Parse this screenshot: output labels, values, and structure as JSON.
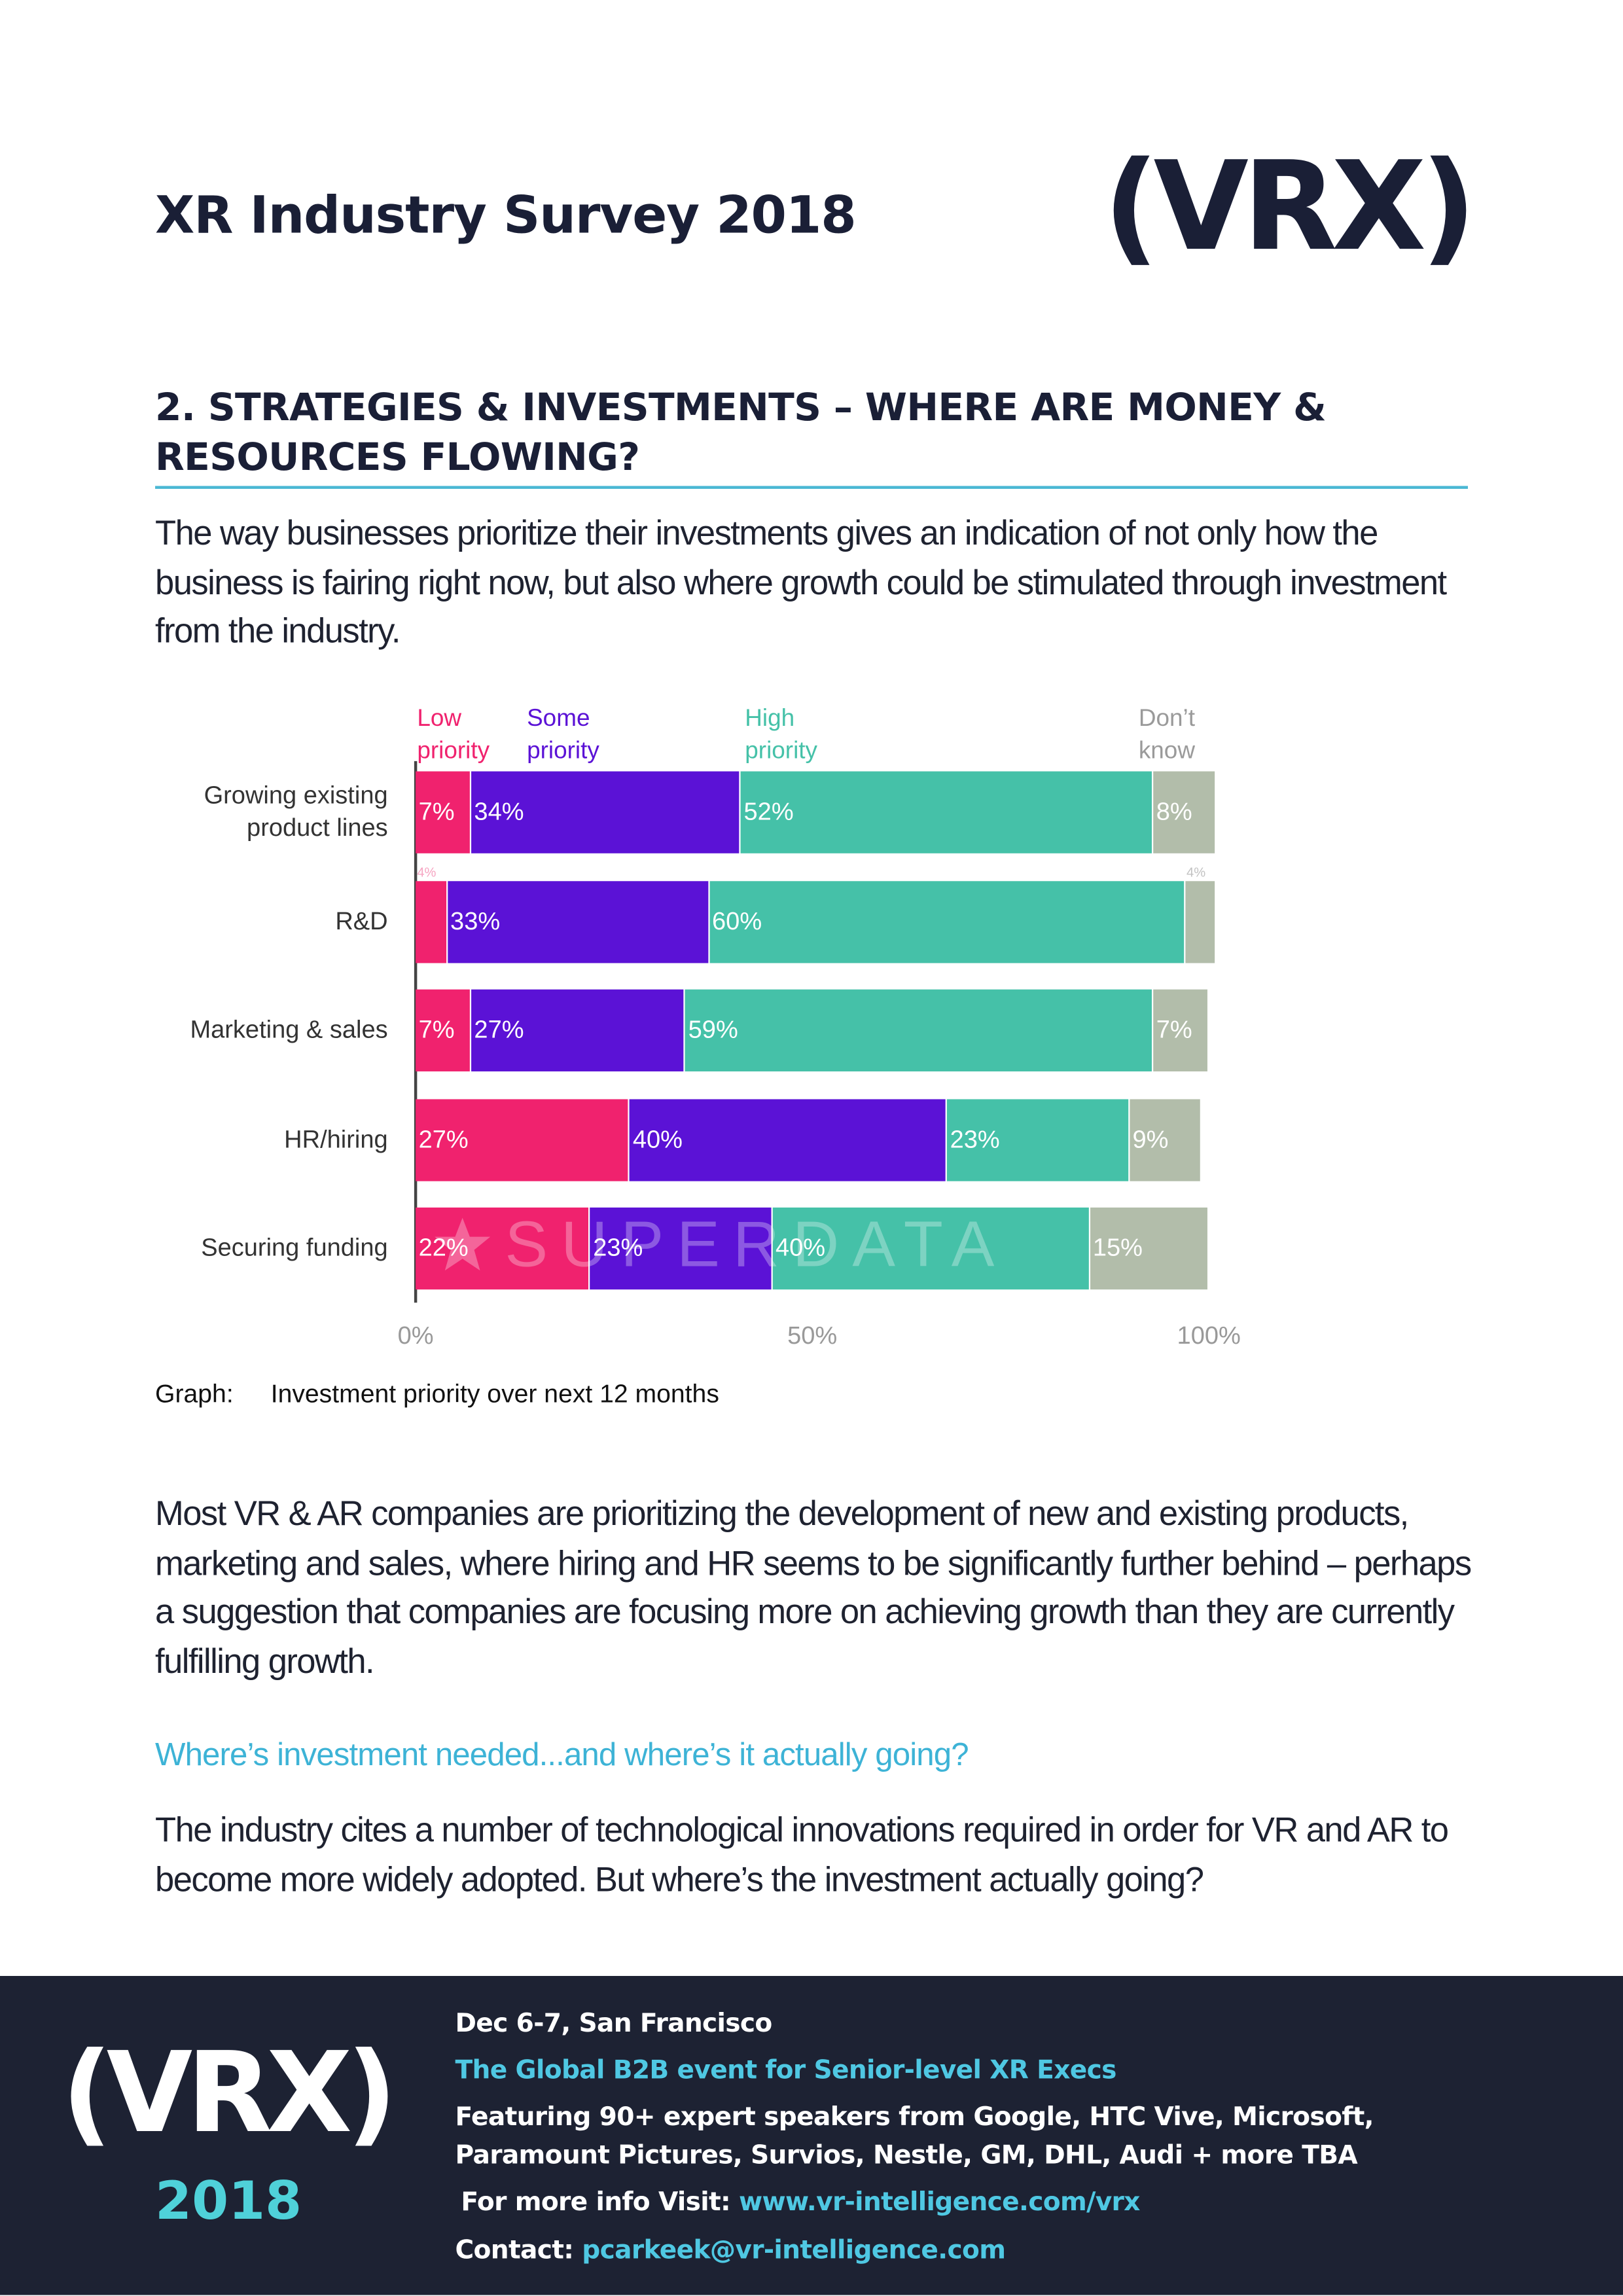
{
  "header": {
    "title": "XR Industry Survey 2018",
    "logo": "(VRX)"
  },
  "section": {
    "heading": "2. STRATEGIES & INVESTMENTS – WHERE ARE MONEY & RESOURCES FLOWING?",
    "intro": "The way businesses prioritize their investments gives an indication of not only how the business is fairing right now, but also where growth could be stimulated through investment from the industry."
  },
  "chart_data": {
    "type": "stacked-bar-horizontal",
    "categories": [
      "Growing existing product lines",
      "R&D",
      "Marketing & sales",
      "HR/hiring",
      "Securing funding"
    ],
    "series": [
      {
        "name": "Low priority",
        "color": "#f0226e",
        "values": [
          7,
          4,
          7,
          27,
          22
        ],
        "value_labels": [
          "7%",
          "4%",
          "7%",
          "27%",
          "22%"
        ]
      },
      {
        "name": "Some priority",
        "color": "#5b12d6",
        "values": [
          34,
          33,
          27,
          40,
          23
        ],
        "value_labels": [
          "34%",
          "33%",
          "27%",
          "40%",
          "23%"
        ]
      },
      {
        "name": "High priority",
        "color": "#45c1a8",
        "values": [
          52,
          60,
          59,
          23,
          40
        ],
        "value_labels": [
          "52%",
          "60%",
          "59%",
          "23%",
          "40%"
        ]
      },
      {
        "name": "Don’t know",
        "color": "#b2bdaa",
        "values": [
          8,
          4,
          7,
          9,
          15
        ],
        "value_labels": [
          "8%",
          "4%",
          "7%",
          "9%",
          "15%"
        ]
      }
    ],
    "xlim": [
      0,
      100
    ],
    "xticks": [
      {
        "value": 0,
        "label": "0%"
      },
      {
        "value": 50,
        "label": "50%"
      },
      {
        "value": 100,
        "label": "100%"
      }
    ],
    "watermark": "SUPERDATA",
    "caption_label": "Graph:",
    "caption": "Investment priority over next 12 months"
  },
  "body": {
    "paragraph1": "Most VR & AR companies are prioritizing the development of new and existing products, marketing and sales, where hiring and HR seems to be significantly further behind – perhaps a suggestion that companies are focusing more on achieving growth than they are currently fulfilling growth.",
    "subheading": "Where’s investment needed...and where’s it actually going?",
    "paragraph2": "The industry cites a number of technological innovations required in order for VR and AR to become more widely adopted. But where’s the investment actually going?"
  },
  "footer": {
    "logo": "(VRX)",
    "year": "2018",
    "date": "Dec 6-7, San Francisco",
    "tagline": "The Global B2B event for Senior-level XR Execs",
    "speakers": "Featuring 90+ expert speakers from Google, HTC Vive, Microsoft, Paramount Pictures, Survios, Nestle, GM, DHL, Audi + more TBA",
    "info_label": "For more info Visit:",
    "info_link": "www.vr-intelligence.com/vrx",
    "contact_label": "Contact:",
    "contact_link": "pcarkeek@vr-intelligence.com"
  }
}
